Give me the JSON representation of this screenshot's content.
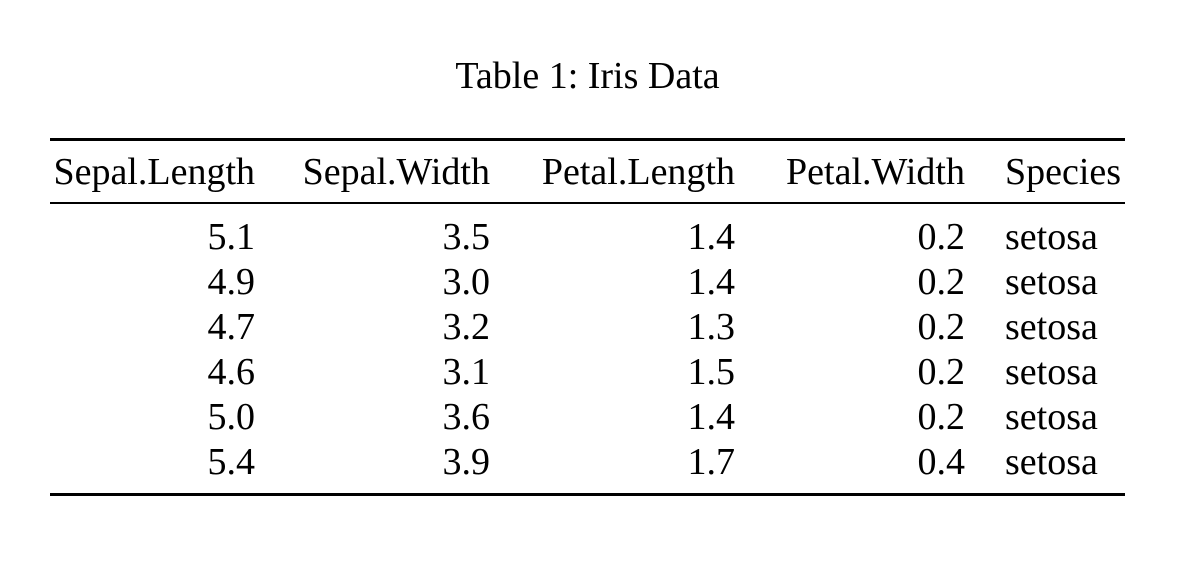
{
  "document": {
    "caption": "Table 1: Iris Data",
    "table": {
      "columns": [
        {
          "label": "Sepal.Length",
          "align": "right"
        },
        {
          "label": "Sepal.Width",
          "align": "right"
        },
        {
          "label": "Petal.Length",
          "align": "right"
        },
        {
          "label": "Petal.Width",
          "align": "right"
        },
        {
          "label": "Species",
          "align": "left"
        }
      ],
      "rows": [
        [
          "5.1",
          "3.5",
          "1.4",
          "0.2",
          "setosa"
        ],
        [
          "4.9",
          "3.0",
          "1.4",
          "0.2",
          "setosa"
        ],
        [
          "4.7",
          "3.2",
          "1.3",
          "0.2",
          "setosa"
        ],
        [
          "4.6",
          "3.1",
          "1.5",
          "0.2",
          "setosa"
        ],
        [
          "5.0",
          "3.6",
          "1.4",
          "0.2",
          "setosa"
        ],
        [
          "5.4",
          "3.9",
          "1.7",
          "0.4",
          "setosa"
        ]
      ],
      "text_color": "#000000",
      "background_color": "#ffffff",
      "rule_color": "#000000"
    }
  }
}
